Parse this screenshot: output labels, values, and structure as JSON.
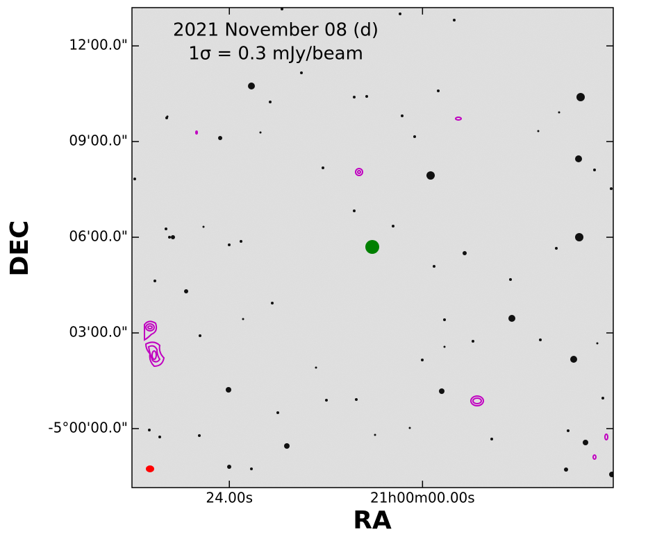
{
  "chart_data": {
    "type": "image",
    "title_lines": [
      "2021 November 08 (d)",
      "1σ = 0.3 mJy/beam"
    ],
    "x_label": "RA",
    "y_label": "DEC",
    "xlim": [
      36.1,
      -23.7
    ],
    "xticks": [
      {
        "value": 24,
        "label": "24.00s"
      },
      {
        "value": 0,
        "label": "21h00m00.00s"
      }
    ],
    "ylim": [
      -1.85,
      13.2
    ],
    "yticks": [
      {
        "value": 0,
        "label": "-5°00'00.0\""
      },
      {
        "value": 3,
        "label": "03'00.0\""
      },
      {
        "value": 6,
        "label": "06'00.0\""
      },
      {
        "value": 9,
        "label": "09'00.0\""
      },
      {
        "value": 12,
        "label": "12'00.0\""
      }
    ]
  }
}
